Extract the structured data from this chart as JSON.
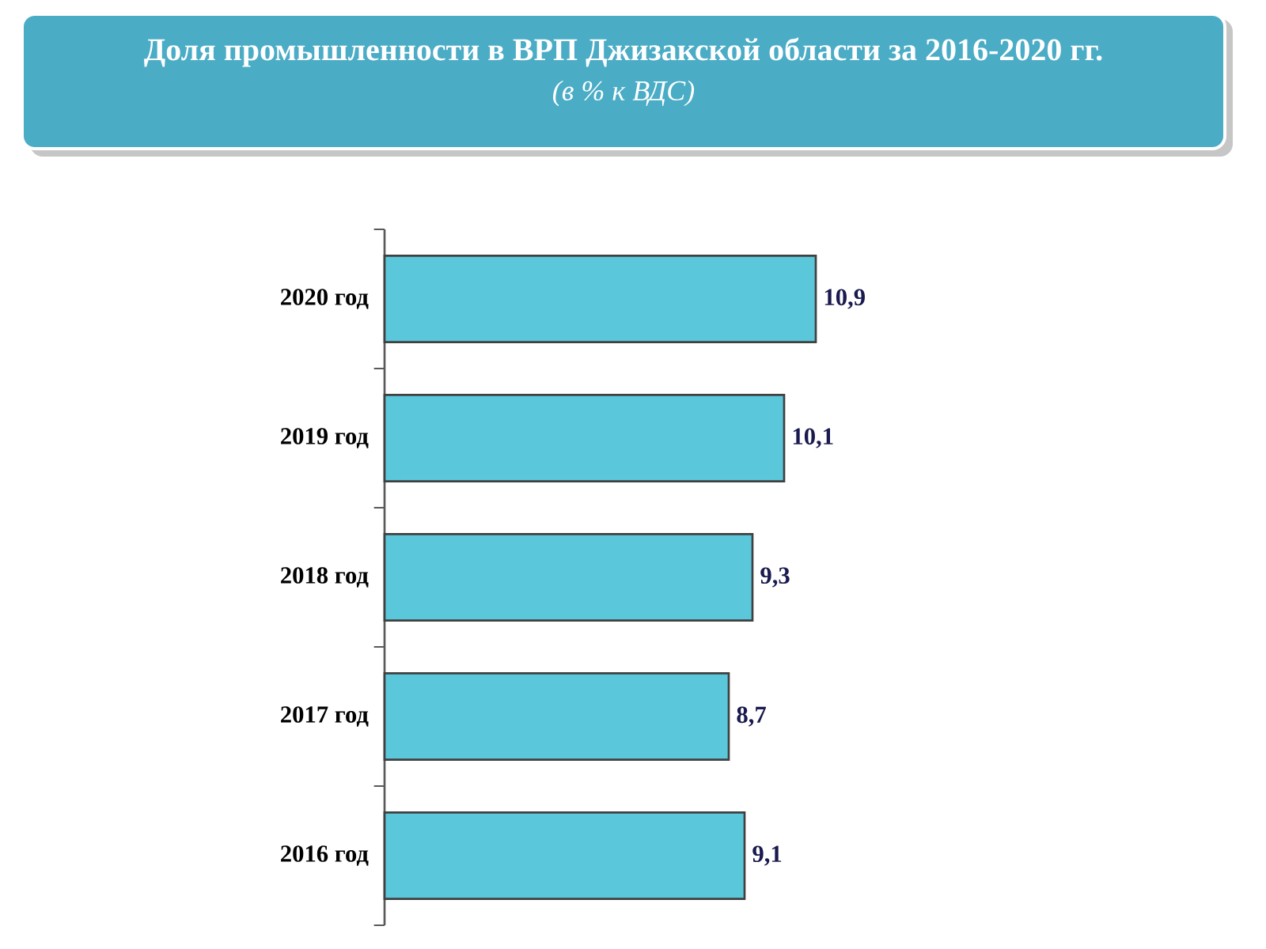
{
  "chart_data": {
    "type": "bar",
    "orientation": "horizontal",
    "title": "Доля промышленности в ВРП Джизакской области за 2016-2020 гг.",
    "subtitle": "(в % к ВДС)",
    "categories": [
      "2020 год",
      "2019 год",
      "2018 год",
      "2017 год",
      "2016 год"
    ],
    "values": [
      10.9,
      10.1,
      9.3,
      8.7,
      9.1
    ],
    "value_labels": [
      "10,9",
      "10,1",
      "9,3",
      "8,7",
      "9,1"
    ],
    "color": "#5bc7da"
  }
}
